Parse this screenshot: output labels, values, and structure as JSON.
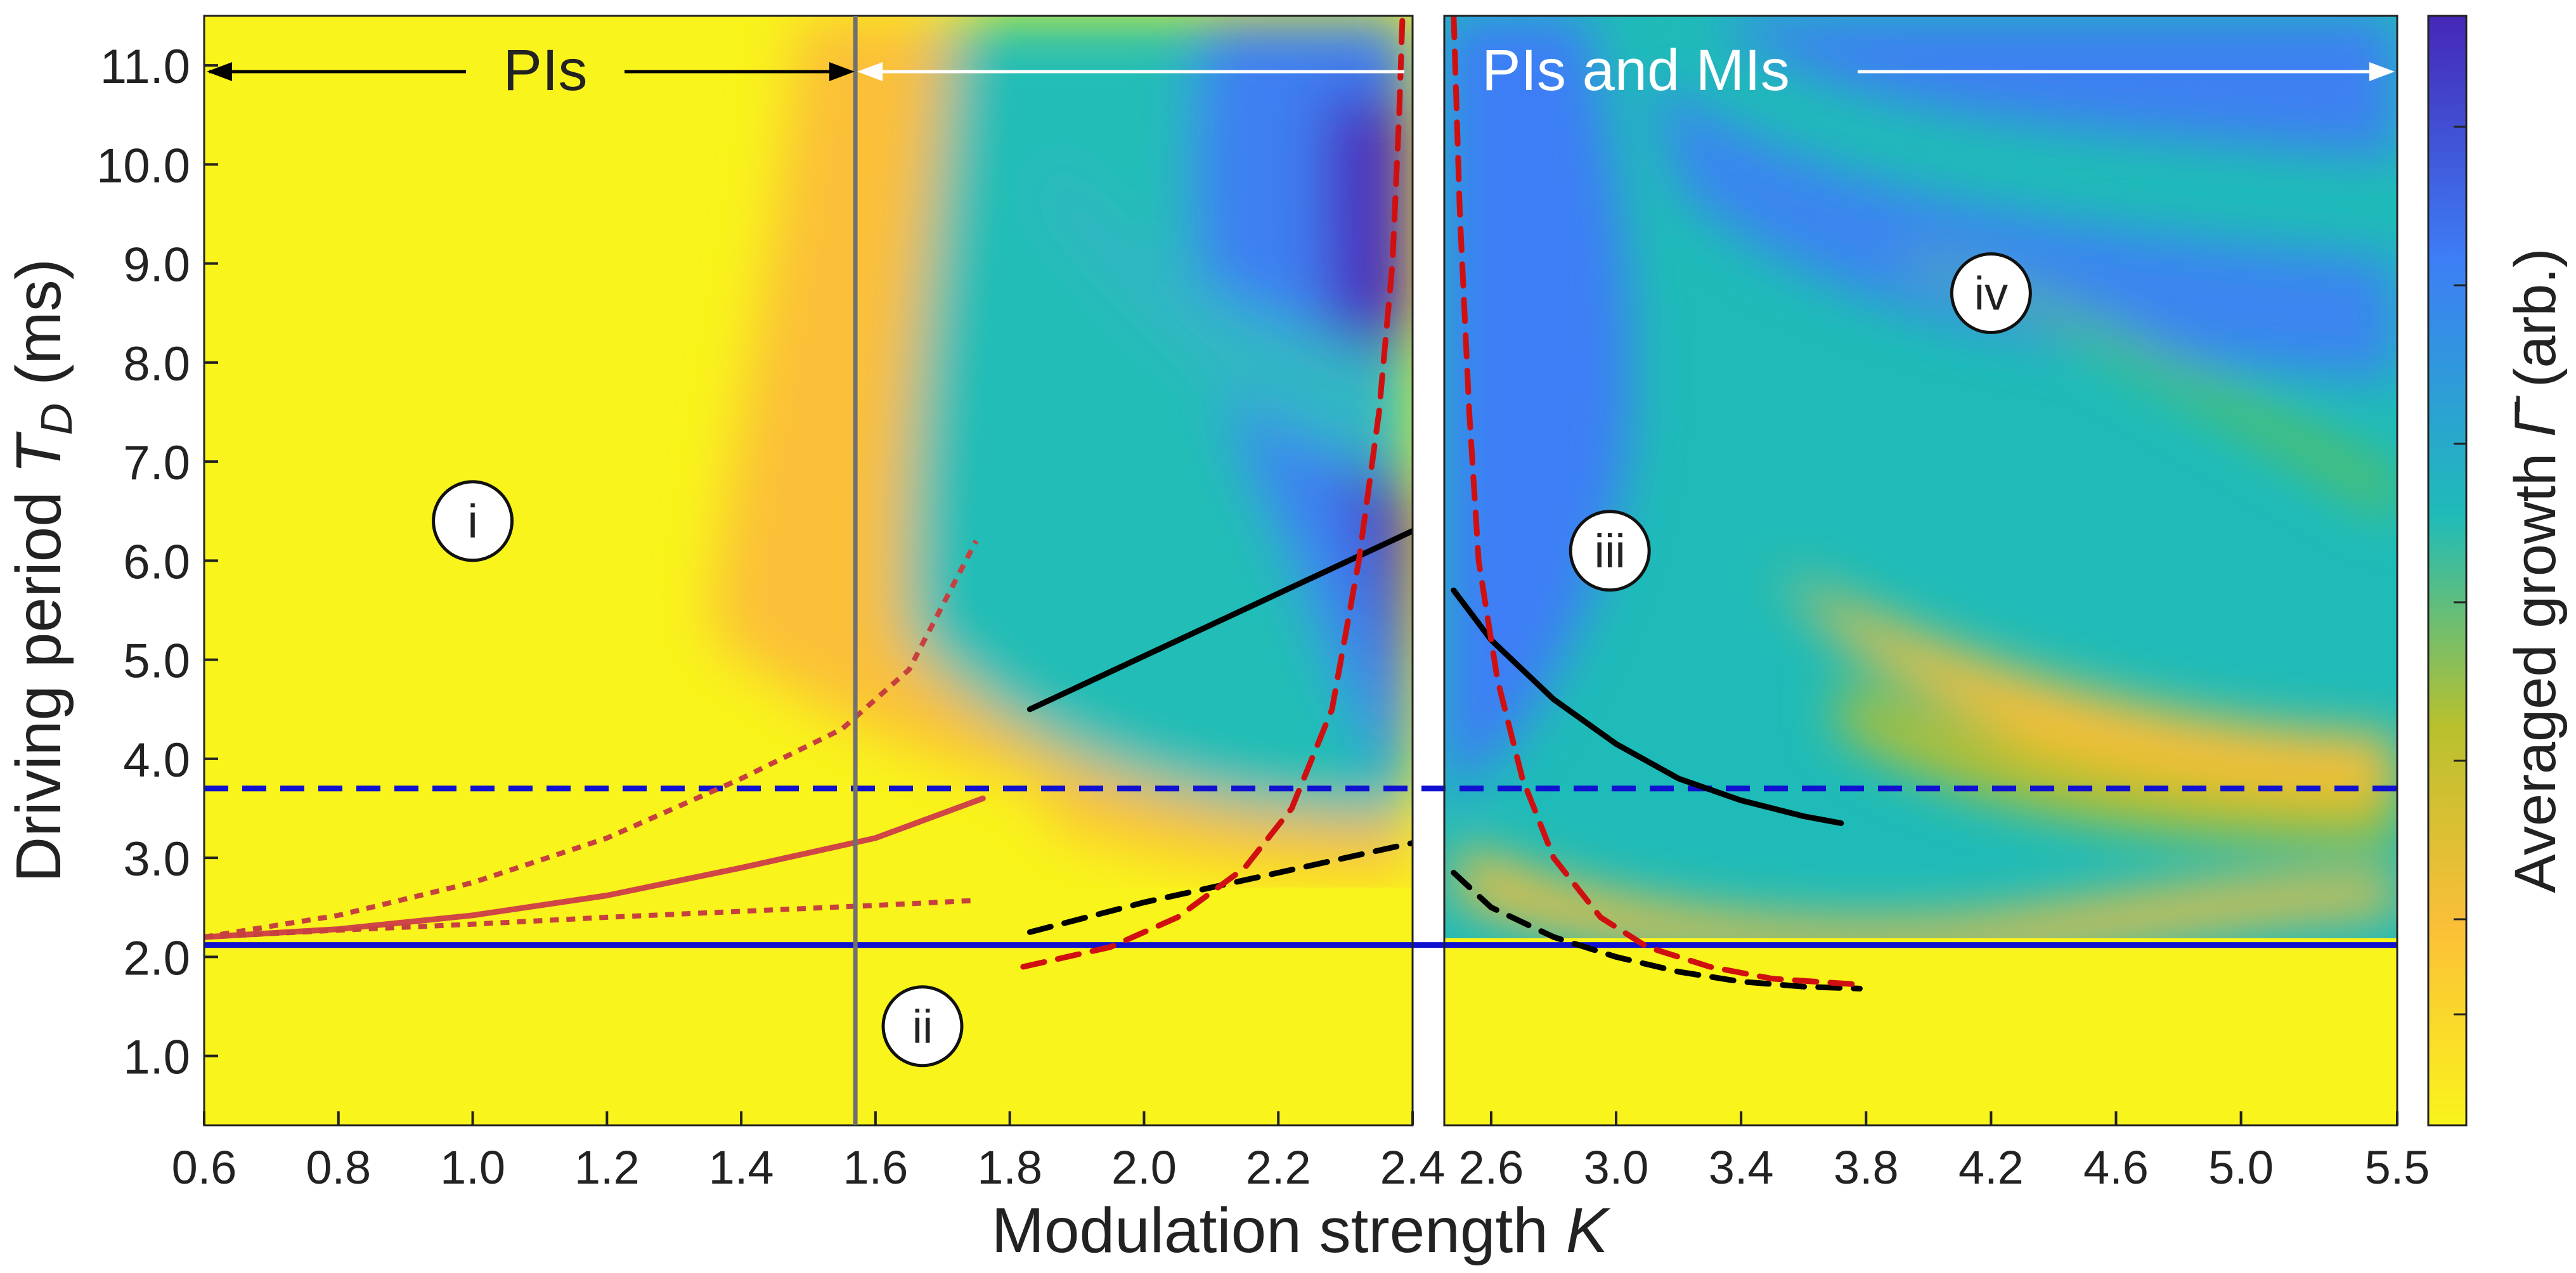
{
  "chart_data": {
    "type": "heatmap",
    "xlabel": "Modulation strength K",
    "ylabel": "Driving period T_D (ms)",
    "colorbar_label": "Averaged growth Γ̄ (arb.)",
    "colormap": [
      "#f9f41b",
      "#fbbf39",
      "#b8c02e",
      "#1fbbb8",
      "#3d7ef6",
      "#4527b6"
    ],
    "ylim": [
      0.3,
      11.5
    ],
    "yticks": [
      "1.0",
      "2.0",
      "3.0",
      "4.0",
      "5.0",
      "6.0",
      "7.0",
      "8.0",
      "9.0",
      "10.0",
      "11.0"
    ],
    "panels": [
      {
        "xlim": [
          0.6,
          2.4
        ],
        "xticks": [
          "0.6",
          "0.8",
          "1.0",
          "1.2",
          "1.4",
          "1.6",
          "1.8",
          "2.0",
          "2.2",
          "2.4"
        ]
      },
      {
        "xlim": [
          2.45,
          5.5
        ],
        "xticks": [
          "2.6",
          "3.0",
          "3.4",
          "3.8",
          "4.2",
          "4.6",
          "5.0",
          "5.5"
        ]
      }
    ],
    "annotations": {
      "pis_label": "PIs",
      "pis_mis_label": "PIs and MIs",
      "pis_range": [
        0.6,
        1.57
      ],
      "pis_mis_range": [
        1.57,
        5.5
      ],
      "divider_x": 1.57,
      "region_labels": [
        {
          "text": "i",
          "x": 1.0,
          "y": 6.4
        },
        {
          "text": "ii",
          "x": 1.67,
          "y": 1.3
        },
        {
          "text": "iii",
          "x": 2.98,
          "y": 6.1
        },
        {
          "text": "iv",
          "x": 4.2,
          "y": 8.7
        }
      ]
    },
    "reference_lines": [
      {
        "name": "",
        "style": "solid",
        "color": "#1010d0",
        "y": 2.12
      },
      {
        "name": "",
        "style": "dashed",
        "color": "#1010d0",
        "y": 3.7
      }
    ],
    "curves": [
      {
        "panel": 0,
        "style": "solid",
        "color": "#d04545",
        "points": [
          [
            0.6,
            2.2
          ],
          [
            0.8,
            2.28
          ],
          [
            1.0,
            2.42
          ],
          [
            1.2,
            2.62
          ],
          [
            1.4,
            2.9
          ],
          [
            1.6,
            3.2
          ],
          [
            1.76,
            3.6
          ]
        ]
      },
      {
        "panel": 0,
        "style": "dotted",
        "color": "#c64040",
        "points": [
          [
            0.6,
            2.2
          ],
          [
            0.8,
            2.42
          ],
          [
            1.0,
            2.75
          ],
          [
            1.2,
            3.2
          ],
          [
            1.4,
            3.8
          ],
          [
            1.55,
            4.3
          ],
          [
            1.65,
            4.9
          ],
          [
            1.75,
            6.2
          ]
        ]
      },
      {
        "panel": 0,
        "style": "dotted",
        "color": "#c64040",
        "points": [
          [
            0.6,
            2.2
          ],
          [
            0.8,
            2.27
          ],
          [
            1.0,
            2.33
          ],
          [
            1.2,
            2.4
          ],
          [
            1.4,
            2.46
          ],
          [
            1.6,
            2.52
          ],
          [
            1.75,
            2.57
          ]
        ]
      },
      {
        "panel": 0,
        "style": "solid",
        "color": "#000000",
        "points": [
          [
            1.83,
            4.5
          ],
          [
            2.4,
            6.3
          ]
        ]
      },
      {
        "panel": 0,
        "style": "dashed",
        "color": "#000000",
        "points": [
          [
            1.83,
            2.25
          ],
          [
            2.0,
            2.55
          ],
          [
            2.2,
            2.85
          ],
          [
            2.4,
            3.15
          ]
        ]
      },
      {
        "panel": 0,
        "style": "dashed",
        "color": "#d01010",
        "points": [
          [
            1.82,
            1.9
          ],
          [
            1.95,
            2.1
          ],
          [
            2.05,
            2.4
          ],
          [
            2.15,
            2.9
          ],
          [
            2.22,
            3.5
          ],
          [
            2.28,
            4.5
          ],
          [
            2.32,
            6.0
          ],
          [
            2.35,
            7.5
          ],
          [
            2.37,
            9.0
          ],
          [
            2.38,
            10.5
          ],
          [
            2.385,
            11.5
          ]
        ]
      },
      {
        "panel": 1,
        "style": "solid",
        "color": "#000000",
        "points": [
          [
            2.48,
            5.7
          ],
          [
            2.6,
            5.2
          ],
          [
            2.8,
            4.6
          ],
          [
            3.0,
            4.15
          ],
          [
            3.2,
            3.8
          ],
          [
            3.4,
            3.58
          ],
          [
            3.6,
            3.42
          ],
          [
            3.72,
            3.35
          ]
        ]
      },
      {
        "panel": 1,
        "style": "dashed",
        "color": "#000000",
        "points": [
          [
            2.48,
            2.85
          ],
          [
            2.6,
            2.5
          ],
          [
            2.8,
            2.2
          ],
          [
            3.0,
            2.0
          ],
          [
            3.2,
            1.85
          ],
          [
            3.4,
            1.75
          ],
          [
            3.6,
            1.7
          ],
          [
            3.78,
            1.68
          ]
        ]
      },
      {
        "panel": 1,
        "style": "dashed",
        "color": "#d01010",
        "points": [
          [
            2.48,
            11.5
          ],
          [
            2.5,
            9.5
          ],
          [
            2.53,
            7.5
          ],
          [
            2.56,
            6.0
          ],
          [
            2.62,
            4.8
          ],
          [
            2.7,
            3.8
          ],
          [
            2.8,
            3.0
          ],
          [
            2.95,
            2.4
          ],
          [
            3.1,
            2.1
          ],
          [
            3.3,
            1.9
          ],
          [
            3.5,
            1.78
          ],
          [
            3.78,
            1.72
          ]
        ]
      }
    ]
  }
}
